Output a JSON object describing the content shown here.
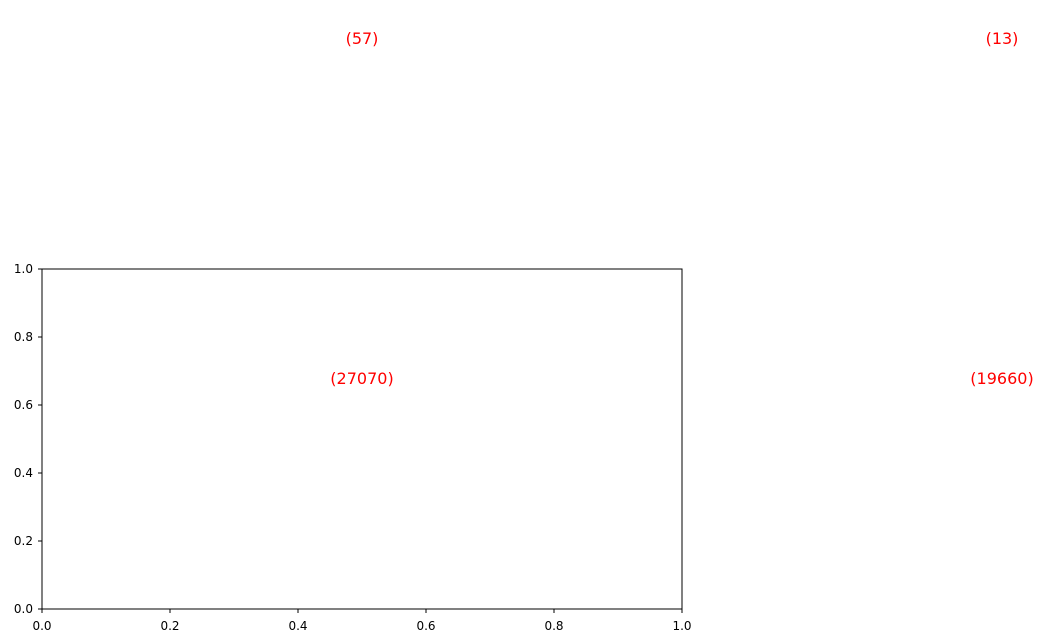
{
  "chart_data": {
    "type": "scatter",
    "title": "",
    "xlabel": "",
    "ylabel": "",
    "xlim": [
      0,
      1
    ],
    "ylim": [
      0,
      1
    ],
    "x_ticks": [
      "0.0",
      "0.2",
      "0.4",
      "0.6",
      "0.8",
      "1.0"
    ],
    "y_ticks": [
      "0.0",
      "0.2",
      "0.4",
      "0.6",
      "0.8",
      "1.0"
    ],
    "grid": false,
    "axes_color": "#000000",
    "annotation_color": "#ff0000",
    "annotations": [
      {
        "text": "(57)",
        "x": 0.5,
        "y": 1.68
      },
      {
        "text": "(13)",
        "x": 1.5,
        "y": 1.68
      },
      {
        "text": "(27070)",
        "x": 0.5,
        "y": 0.68
      },
      {
        "text": "(19660)",
        "x": 1.5,
        "y": 0.68
      }
    ]
  }
}
